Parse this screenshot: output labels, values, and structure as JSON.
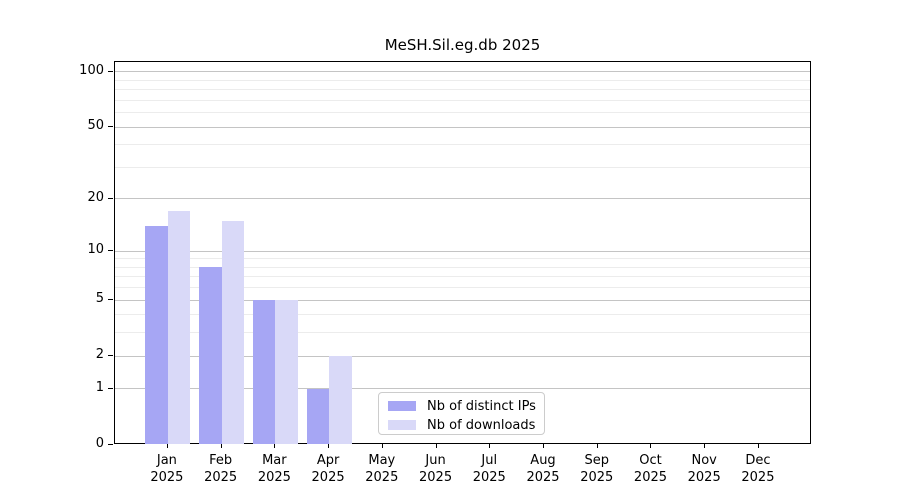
{
  "chart_data": {
    "type": "bar",
    "title": "MeSH.Sil.eg.db 2025",
    "categories": [
      "Jan",
      "Feb",
      "Mar",
      "Apr",
      "May",
      "Jun",
      "Jul",
      "Aug",
      "Sep",
      "Oct",
      "Nov",
      "Dec"
    ],
    "x_tick_year": "2025",
    "series": [
      {
        "name": "Nb of distinct IPs",
        "color": "#a6a6f4",
        "values": [
          14,
          8,
          5,
          1,
          0,
          0,
          0,
          0,
          0,
          0,
          0,
          0
        ]
      },
      {
        "name": "Nb of downloads",
        "color": "#d9d9f8",
        "values": [
          17,
          15,
          5,
          2,
          0,
          0,
          0,
          0,
          0,
          0,
          0,
          0
        ]
      }
    ],
    "y_axis": {
      "scale": "log10(value+1)",
      "max": 113,
      "ticks": [
        {
          "label": "100",
          "value": 100
        },
        {
          "label": "50",
          "value": 50
        },
        {
          "label": "20",
          "value": 20
        },
        {
          "label": "10",
          "value": 10
        },
        {
          "label": "5",
          "value": 5
        },
        {
          "label": "2",
          "value": 2
        },
        {
          "label": "1",
          "value": 1
        },
        {
          "label": "0",
          "value": 0
        }
      ],
      "minor_gridlines": [
        3,
        4,
        6,
        7,
        8,
        9,
        30,
        40,
        60,
        70,
        80,
        90
      ]
    },
    "grid": true,
    "legend_position": "lower center"
  }
}
